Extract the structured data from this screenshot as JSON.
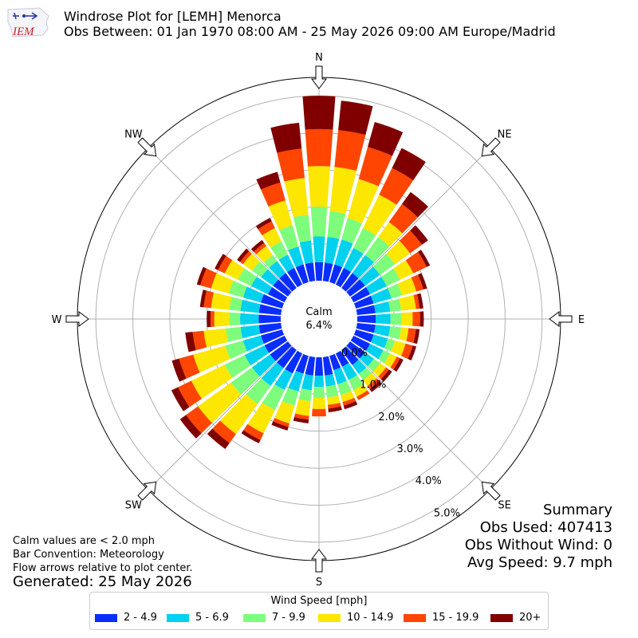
{
  "header": {
    "title_line1": "Windrose Plot for [LEMH] Menorca",
    "title_line2": "Obs Between: 01 Jan 1970 08:00 AM - 25 May 2026 09:00 AM Europe/Madrid",
    "logo_text": "IEM"
  },
  "center": {
    "calm_label": "Calm",
    "calm_value": "6.4%"
  },
  "summary": {
    "heading": "Summary",
    "obs_used": "Obs Used: 407413",
    "obs_without_wind": "Obs Without Wind: 0",
    "avg_speed": "Avg Speed: 9.7 mph"
  },
  "notes": {
    "calm_note": "Calm values are < 2.0 mph",
    "bar_convention": "Bar Convention: Meteorology",
    "flow_arrows": "Flow arrows relative to plot center.",
    "generated": "Generated: 25 May 2026"
  },
  "legend": {
    "title": "Wind Speed [mph]",
    "items": [
      {
        "label": "2 - 4.9",
        "color": "#0a2dff"
      },
      {
        "label": "5 - 6.9",
        "color": "#00d1ee"
      },
      {
        "label": "7 - 9.9",
        "color": "#7dfd7b"
      },
      {
        "label": "10 - 14.9",
        "color": "#fde600"
      },
      {
        "label": "15 - 19.9",
        "color": "#ff4500"
      },
      {
        "label": "20+",
        "color": "#800000"
      }
    ]
  },
  "chart_data": {
    "type": "windrose",
    "bar_convention": "meteorology",
    "units": "percent of observations",
    "radial_ticks": [
      "0.0%",
      "1.0%",
      "2.0%",
      "3.0%",
      "4.0%",
      "5.0%"
    ],
    "radial_max": 5.5,
    "compass_labels": [
      {
        "label": "N",
        "deg": 0
      },
      {
        "label": "NE",
        "deg": 45
      },
      {
        "label": "E",
        "deg": 90
      },
      {
        "label": "SE",
        "deg": 135
      },
      {
        "label": "S",
        "deg": 180
      },
      {
        "label": "SW",
        "deg": 225
      },
      {
        "label": "W",
        "deg": 270
      },
      {
        "label": "NW",
        "deg": 315
      }
    ],
    "speed_bins": [
      "2 - 4.9",
      "5 - 6.9",
      "7 - 9.9",
      "10 - 14.9",
      "15 - 19.9",
      "20+"
    ],
    "directions_deg": [
      0,
      10,
      20,
      30,
      40,
      50,
      60,
      70,
      80,
      90,
      100,
      110,
      120,
      130,
      140,
      150,
      160,
      170,
      180,
      190,
      200,
      210,
      220,
      230,
      240,
      250,
      260,
      270,
      280,
      290,
      300,
      310,
      320,
      330,
      340,
      350
    ],
    "cumulative": [
      [
        0.5,
        1.2,
        2.0,
        3.1,
        4.1,
        5.0
      ],
      [
        0.5,
        1.2,
        1.9,
        3.1,
        4.1,
        4.9
      ],
      [
        0.5,
        1.2,
        1.8,
        2.9,
        3.8,
        4.5
      ],
      [
        0.5,
        1.1,
        1.7,
        2.7,
        3.5,
        4.1
      ],
      [
        0.5,
        1.1,
        1.7,
        2.2,
        2.8,
        3.2
      ],
      [
        0.5,
        1.0,
        1.5,
        2.0,
        2.4,
        2.6
      ],
      [
        0.5,
        1.0,
        1.4,
        1.8,
        2.2,
        2.3
      ],
      [
        0.5,
        1.0,
        1.3,
        1.7,
        1.9,
        2.0
      ],
      [
        0.5,
        0.9,
        1.2,
        1.6,
        1.7,
        1.8
      ],
      [
        0.5,
        0.9,
        1.2,
        1.5,
        1.7,
        1.8
      ],
      [
        0.5,
        0.9,
        1.2,
        1.4,
        1.6,
        1.7
      ],
      [
        0.5,
        0.9,
        1.1,
        1.4,
        1.6,
        1.7
      ],
      [
        0.5,
        0.9,
        1.1,
        1.3,
        1.4,
        1.5
      ],
      [
        0.5,
        0.8,
        1.0,
        1.2,
        1.3,
        1.4
      ],
      [
        0.5,
        0.8,
        1.0,
        1.2,
        1.3,
        1.4
      ],
      [
        0.4,
        0.8,
        1.1,
        1.3,
        1.4,
        1.4
      ],
      [
        0.4,
        0.8,
        1.1,
        1.3,
        1.4,
        1.5
      ],
      [
        0.5,
        0.8,
        1.1,
        1.3,
        1.4,
        1.5
      ],
      [
        0.5,
        0.8,
        1.1,
        1.4,
        1.6,
        1.6
      ],
      [
        0.5,
        0.9,
        1.2,
        1.6,
        1.7,
        1.8
      ],
      [
        0.5,
        1.0,
        1.4,
        1.9,
        2.0,
        2.1
      ],
      [
        0.6,
        1.1,
        1.7,
        2.4,
        2.6,
        2.7
      ],
      [
        0.6,
        1.2,
        1.8,
        2.8,
        3.1,
        3.3
      ],
      [
        0.6,
        1.2,
        1.9,
        3.0,
        3.4,
        3.6
      ],
      [
        0.6,
        1.2,
        1.8,
        2.8,
        3.2,
        3.4
      ],
      [
        0.6,
        1.1,
        1.6,
        2.5,
        2.9,
        3.1
      ],
      [
        0.6,
        1.1,
        1.5,
        2.1,
        2.4,
        2.6
      ],
      [
        0.6,
        1.1,
        1.4,
        1.8,
        1.9,
        2.0
      ],
      [
        0.6,
        1.1,
        1.4,
        1.9,
        2.1,
        2.2
      ],
      [
        0.6,
        1.1,
        1.5,
        2.0,
        2.3,
        2.4
      ],
      [
        0.5,
        1.0,
        1.4,
        1.8,
        2.0,
        2.1
      ],
      [
        0.5,
        0.9,
        1.2,
        1.5,
        1.6,
        1.7
      ],
      [
        0.5,
        0.9,
        1.1,
        1.4,
        1.5,
        1.6
      ],
      [
        0.5,
        0.9,
        1.3,
        1.7,
        1.9,
        2.0
      ],
      [
        0.5,
        1.0,
        1.6,
        2.3,
        2.8,
        3.1
      ],
      [
        0.5,
        1.1,
        1.8,
        2.8,
        3.6,
        4.3
      ]
    ]
  }
}
